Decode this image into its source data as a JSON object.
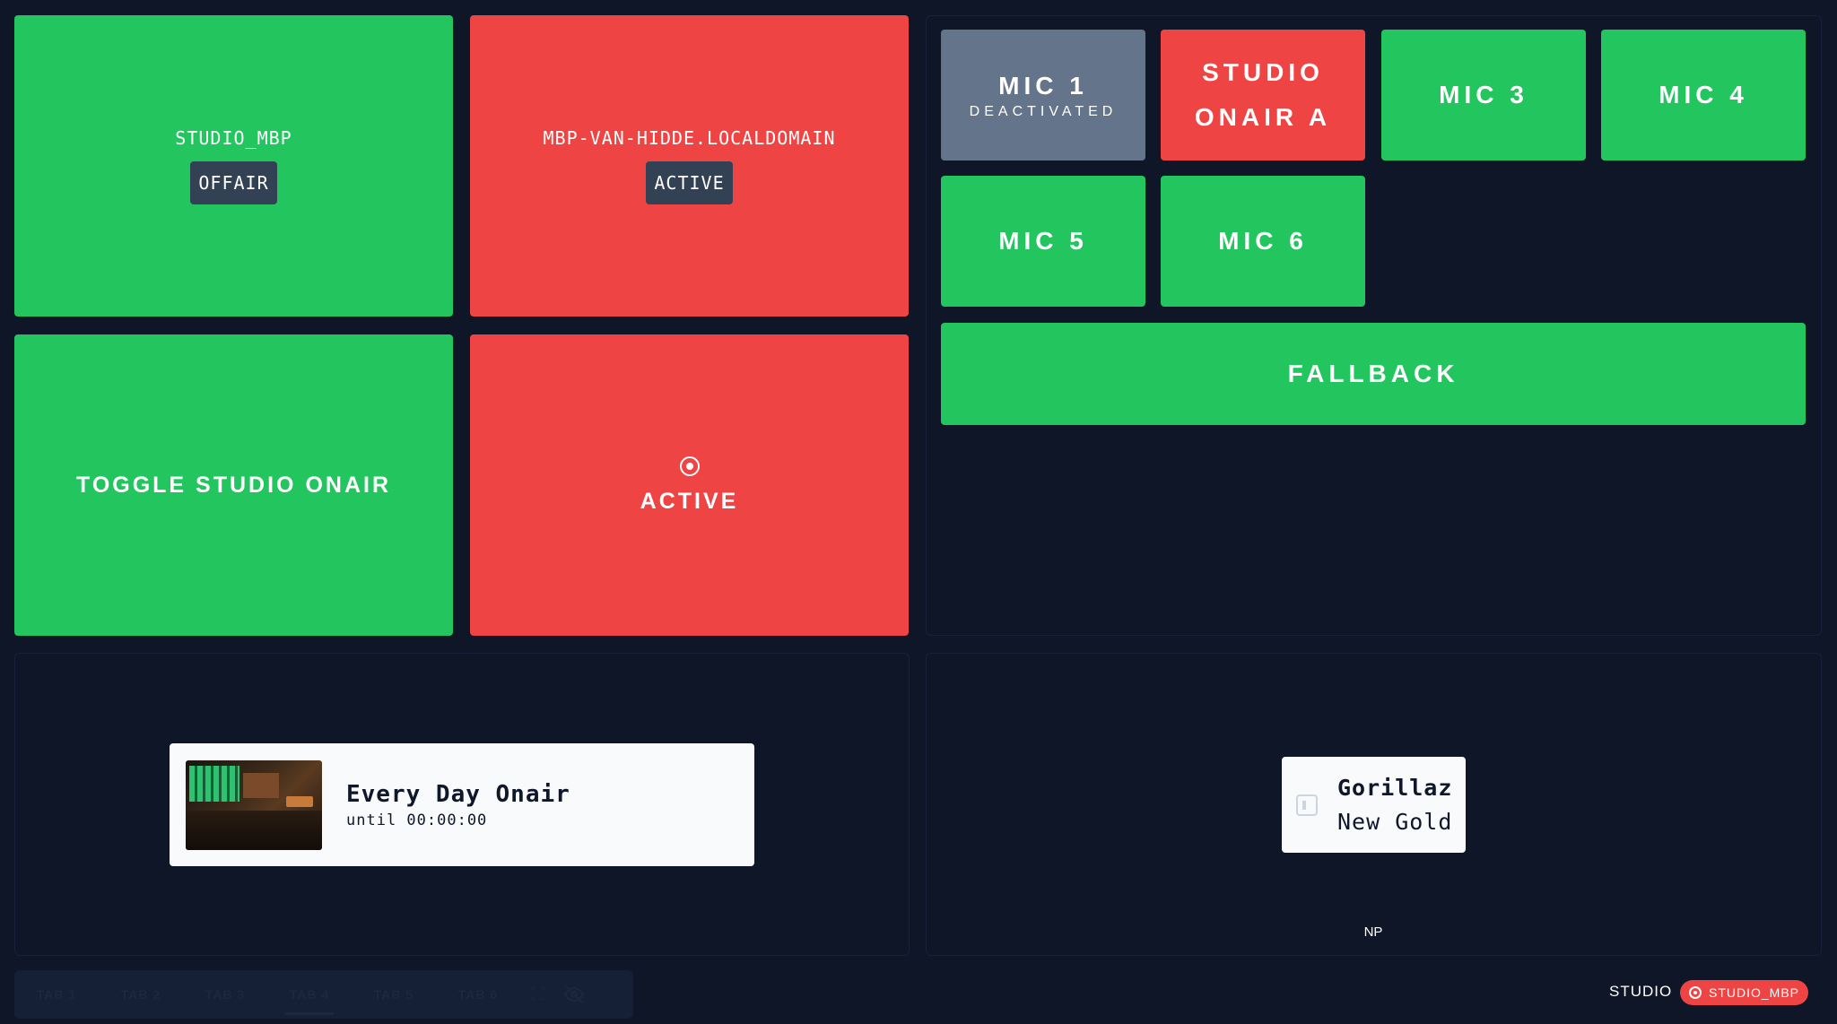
{
  "computers": [
    {
      "hostname": "STUDIO_MBP",
      "status": "OFFAIR",
      "color": "#22c55e"
    },
    {
      "hostname": "MBP-VAN-HIDDE.LOCALDOMAIN",
      "status": "ACTIVE",
      "color": "#ef4444"
    }
  ],
  "toggle_button": {
    "label": "TOGGLE STUDIO ONAIR",
    "color": "#22c55e"
  },
  "onair_indicator": {
    "label": "ACTIVE",
    "icon": "onair-icon",
    "color": "#ef4444"
  },
  "mics": [
    {
      "title": "MIC 1",
      "subtitle": "DEACTIVATED",
      "color": "#64748b"
    },
    {
      "title": "STUDIO ONAIR A",
      "subtitle": "",
      "color": "#ef4444"
    },
    {
      "title": "MIC 3",
      "subtitle": "",
      "color": "#22c55e"
    },
    {
      "title": "MIC 4",
      "subtitle": "",
      "color": "#22c55e"
    },
    {
      "title": "MIC 5",
      "subtitle": "",
      "color": "#22c55e"
    },
    {
      "title": "MIC 6",
      "subtitle": "",
      "color": "#22c55e"
    }
  ],
  "fallback": {
    "label": "FALLBACK",
    "color": "#22c55e"
  },
  "show": {
    "title": "Every Day Onair",
    "subtitle": "until 00:00:00"
  },
  "now_playing": {
    "artist": "Gorillaz",
    "track": "New Gold",
    "label": "NP"
  },
  "tabs": [
    {
      "label": "TAB 1"
    },
    {
      "label": "TAB 2"
    },
    {
      "label": "TAB 3"
    },
    {
      "label": "TAB 4",
      "active": true
    },
    {
      "label": "TAB 5"
    },
    {
      "label": "TAB 6"
    }
  ],
  "tab_icons": [
    "fullscreen-icon",
    "eye-off-icon"
  ],
  "status": {
    "label": "STUDIO",
    "pill": "STUDIO_MBP"
  }
}
